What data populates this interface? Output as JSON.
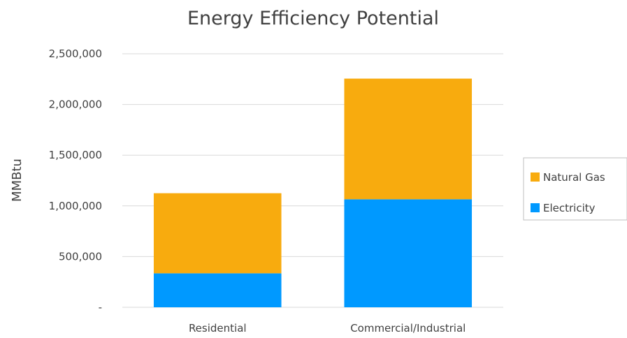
{
  "chart_data": {
    "type": "bar",
    "stacked": true,
    "title": "Energy Efficiency Potential",
    "xlabel": "",
    "ylabel": "MMBtu",
    "categories": [
      "Residential",
      "Commercial/Industrial"
    ],
    "series": [
      {
        "name": "Electricity",
        "values": [
          335000,
          1065000
        ],
        "color": "#0099ff"
      },
      {
        "name": "Natural Gas",
        "values": [
          790000,
          1190000
        ],
        "color": "#f8ab0e"
      }
    ],
    "ylim": [
      0,
      2500000
    ],
    "yticks": [
      0,
      500000,
      1000000,
      1500000,
      2000000,
      2500000
    ],
    "ytick_labels": [
      "-",
      "500,000",
      "1,000,000",
      "1,500,000",
      "2,000,000",
      "2,500,000"
    ],
    "legend_position": "right",
    "legend_order": [
      "Natural Gas",
      "Electricity"
    ],
    "grid": true
  }
}
